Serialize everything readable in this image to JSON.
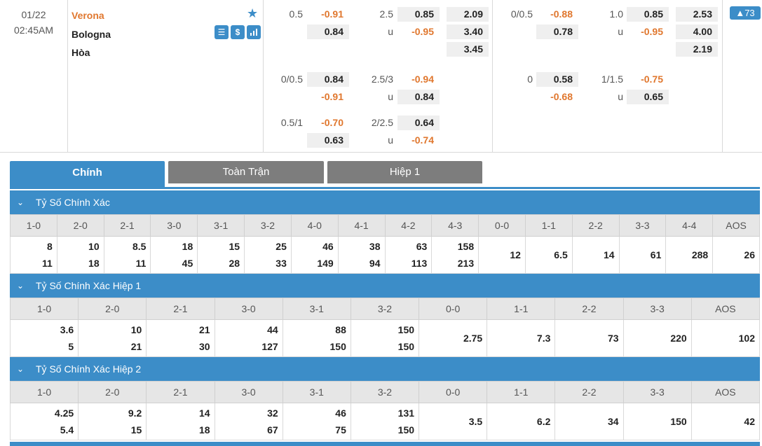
{
  "match": {
    "date": "01/22",
    "time": "02:45AM",
    "home": "Verona",
    "away": "Bologna",
    "draw": "Hòa",
    "more_count": "73",
    "icons": [
      "stats-sheet-icon",
      "dollar-icon",
      "bar-chart-icon"
    ],
    "ft_hdp": {
      "rows": [
        {
          "line": "0.5",
          "home": "-0.91",
          "away": "0.84"
        },
        {
          "line": "0/0.5",
          "home": "0.84",
          "away": "-0.91"
        },
        {
          "line": "0.5/1",
          "home": "-0.70",
          "away": "0.63"
        }
      ]
    },
    "ft_ou": {
      "rows": [
        {
          "line": "2.5",
          "u": "u",
          "over": "0.85",
          "under": "-0.95"
        },
        {
          "line": "2.5/3",
          "u": "u",
          "over": "-0.94",
          "under": "0.84"
        },
        {
          "line": "2/2.5",
          "u": "u",
          "over": "0.64",
          "under": "-0.74"
        }
      ]
    },
    "ft_1x2": [
      "2.09",
      "3.40",
      "3.45"
    ],
    "h1_hdp": {
      "rows": [
        {
          "line": "0/0.5",
          "home": "-0.88",
          "away": "0.78"
        },
        {
          "line": "0",
          "home": "0.58",
          "away": "-0.68"
        }
      ]
    },
    "h1_ou": {
      "rows": [
        {
          "line": "1.0",
          "u": "u",
          "over": "0.85",
          "under": "-0.95"
        },
        {
          "line": "1/1.5",
          "u": "u",
          "over": "-0.75",
          "under": "0.65"
        }
      ]
    },
    "h1_1x2": [
      "2.53",
      "4.00",
      "2.19"
    ]
  },
  "tabs": [
    "Chính",
    "Toàn Trận",
    "Hiệp 1"
  ],
  "sections": [
    {
      "title": "Tỷ Số Chính Xác",
      "cols": [
        {
          "h": "1-0",
          "v1": "8",
          "v2": "11"
        },
        {
          "h": "2-0",
          "v1": "10",
          "v2": "18"
        },
        {
          "h": "2-1",
          "v1": "8.5",
          "v2": "11"
        },
        {
          "h": "3-0",
          "v1": "18",
          "v2": "45"
        },
        {
          "h": "3-1",
          "v1": "15",
          "v2": "28"
        },
        {
          "h": "3-2",
          "v1": "25",
          "v2": "33"
        },
        {
          "h": "4-0",
          "v1": "46",
          "v2": "149"
        },
        {
          "h": "4-1",
          "v1": "38",
          "v2": "94"
        },
        {
          "h": "4-2",
          "v1": "63",
          "v2": "113"
        },
        {
          "h": "4-3",
          "v1": "158",
          "v2": "213"
        },
        {
          "h": "0-0",
          "v1": "12"
        },
        {
          "h": "1-1",
          "v1": "6.5"
        },
        {
          "h": "2-2",
          "v1": "14"
        },
        {
          "h": "3-3",
          "v1": "61"
        },
        {
          "h": "4-4",
          "v1": "288"
        },
        {
          "h": "AOS",
          "v1": "26"
        }
      ]
    },
    {
      "title": "Tỷ Số Chính Xác Hiệp 1",
      "cols": [
        {
          "h": "1-0",
          "v1": "3.6",
          "v2": "5"
        },
        {
          "h": "2-0",
          "v1": "10",
          "v2": "21"
        },
        {
          "h": "2-1",
          "v1": "21",
          "v2": "30"
        },
        {
          "h": "3-0",
          "v1": "44",
          "v2": "127"
        },
        {
          "h": "3-1",
          "v1": "88",
          "v2": "150"
        },
        {
          "h": "3-2",
          "v1": "150",
          "v2": "150"
        },
        {
          "h": "0-0",
          "v1": "2.75"
        },
        {
          "h": "1-1",
          "v1": "7.3"
        },
        {
          "h": "2-2",
          "v1": "73"
        },
        {
          "h": "3-3",
          "v1": "220"
        },
        {
          "h": "AOS",
          "v1": "102"
        }
      ]
    },
    {
      "title": "Tỷ Số Chính Xác Hiệp 2",
      "cols": [
        {
          "h": "1-0",
          "v1": "4.25",
          "v2": "5.4"
        },
        {
          "h": "2-0",
          "v1": "9.2",
          "v2": "15"
        },
        {
          "h": "2-1",
          "v1": "14",
          "v2": "18"
        },
        {
          "h": "3-0",
          "v1": "32",
          "v2": "67"
        },
        {
          "h": "3-1",
          "v1": "46",
          "v2": "75"
        },
        {
          "h": "3-2",
          "v1": "131",
          "v2": "150"
        },
        {
          "h": "0-0",
          "v1": "3.5"
        },
        {
          "h": "1-1",
          "v1": "6.2"
        },
        {
          "h": "2-2",
          "v1": "34"
        },
        {
          "h": "3-3",
          "v1": "150"
        },
        {
          "h": "AOS",
          "v1": "42"
        }
      ]
    }
  ]
}
